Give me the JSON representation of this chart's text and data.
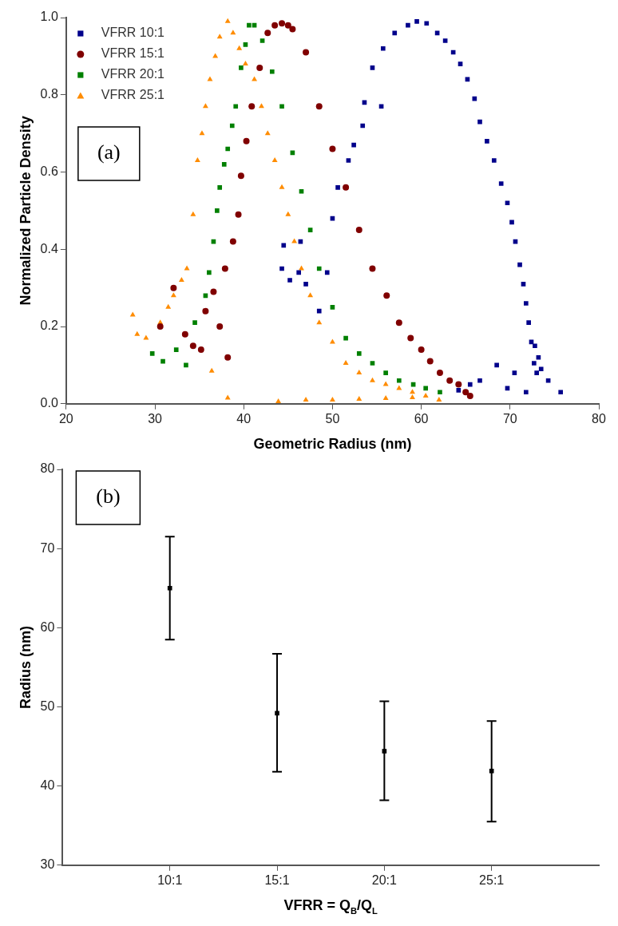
{
  "chart_data": [
    {
      "type": "scatter",
      "xlabel": "Geometric Radius (nm)",
      "ylabel": "Normalized Particle Density",
      "annotations": [
        "(a)"
      ],
      "xlim": [
        20,
        80
      ],
      "xticks": [
        20,
        30,
        40,
        50,
        60,
        70,
        80
      ],
      "ylim": [
        0,
        1
      ],
      "yticks": [
        {
          "value": 0,
          "label": "0.0"
        },
        0.2,
        0.4,
        0.6,
        0.8,
        {
          "value": 1,
          "label": "1.0"
        }
      ],
      "grid": false,
      "legend": "top left",
      "series": [
        {
          "name": "VFRR 10:1",
          "color": "#00008b",
          "marker": "square",
          "x": [
            44.5,
            44.3,
            45.2,
            46.2,
            46.4,
            47.0,
            48.5,
            49.4,
            50.0,
            50.6,
            51.8,
            52.4,
            53.4,
            53.6,
            55.5,
            54.5,
            55.7,
            57.0,
            58.5,
            59.5,
            60.6,
            61.8,
            62.7,
            63.6,
            64.4,
            65.2,
            66.0,
            66.6,
            67.4,
            68.2,
            69.0,
            69.7,
            70.2,
            70.6,
            71.1,
            71.5,
            71.8,
            72.1,
            72.4,
            72.7,
            73.0,
            73.5,
            74.3,
            75.7,
            69.7,
            66.6,
            64.2,
            71.8,
            70.5,
            72.8,
            73.2,
            68.5,
            65.5
          ],
          "values": [
            0.41,
            0.35,
            0.32,
            0.34,
            0.42,
            0.31,
            0.24,
            0.34,
            0.48,
            0.56,
            0.63,
            0.67,
            0.72,
            0.78,
            0.77,
            0.87,
            0.92,
            0.96,
            0.98,
            0.99,
            0.985,
            0.96,
            0.94,
            0.91,
            0.88,
            0.84,
            0.79,
            0.73,
            0.68,
            0.63,
            0.57,
            0.52,
            0.47,
            0.42,
            0.36,
            0.31,
            0.26,
            0.21,
            0.16,
            0.105,
            0.08,
            0.09,
            0.06,
            0.03,
            0.04,
            0.06,
            0.035,
            0.03,
            0.08,
            0.15,
            0.12,
            0.1,
            0.05
          ]
        },
        {
          "name": "VFRR 15:1",
          "color": "#800000",
          "marker": "circle",
          "x": [
            30.6,
            32.1,
            33.4,
            34.3,
            35.2,
            35.7,
            36.6,
            37.3,
            38.2,
            37.9,
            38.8,
            39.4,
            39.7,
            40.3,
            40.9,
            41.8,
            42.7,
            43.5,
            44.3,
            45.0,
            45.5,
            47.0,
            48.5,
            50.0,
            51.5,
            53.0,
            54.5,
            56.1,
            57.5,
            58.8,
            60.0,
            61.0,
            62.1,
            63.2,
            64.2,
            65.0,
            65.5
          ],
          "values": [
            0.2,
            0.3,
            0.18,
            0.15,
            0.14,
            0.24,
            0.29,
            0.2,
            0.12,
            0.35,
            0.42,
            0.49,
            0.59,
            0.68,
            0.77,
            0.87,
            0.96,
            0.98,
            0.985,
            0.98,
            0.97,
            0.91,
            0.77,
            0.66,
            0.56,
            0.45,
            0.35,
            0.28,
            0.21,
            0.17,
            0.14,
            0.11,
            0.08,
            0.06,
            0.05,
            0.03,
            0.02
          ]
        },
        {
          "name": "VFRR 20:1",
          "color": "#008000",
          "marker": "square",
          "x": [
            29.7,
            30.9,
            32.4,
            33.5,
            34.5,
            35.7,
            36.1,
            36.6,
            37.0,
            37.3,
            37.8,
            38.2,
            38.7,
            39.1,
            39.7,
            40.2,
            40.6,
            41.2,
            42.1,
            43.2,
            44.3,
            45.5,
            46.5,
            47.5,
            48.5,
            50.0,
            51.5,
            53.0,
            54.5,
            56.0,
            57.5,
            59.1,
            60.5,
            62.1
          ],
          "values": [
            0.13,
            0.11,
            0.14,
            0.1,
            0.21,
            0.28,
            0.34,
            0.42,
            0.5,
            0.56,
            0.62,
            0.66,
            0.72,
            0.77,
            0.87,
            0.93,
            0.98,
            0.98,
            0.94,
            0.86,
            0.77,
            0.65,
            0.55,
            0.45,
            0.35,
            0.25,
            0.17,
            0.13,
            0.105,
            0.08,
            0.06,
            0.05,
            0.04,
            0.03
          ]
        },
        {
          "name": "VFRR 25:1",
          "color": "#ff8c00",
          "marker": "triangle",
          "x": [
            27.5,
            28.0,
            29.0,
            30.6,
            31.5,
            32.1,
            33.0,
            33.6,
            34.3,
            34.8,
            35.3,
            35.7,
            36.2,
            36.4,
            36.8,
            37.3,
            38.2,
            38.8,
            39.5,
            40.2,
            41.2,
            42.0,
            42.7,
            43.5,
            44.3,
            45.0,
            45.7,
            46.5,
            47.5,
            48.5,
            50.0,
            51.5,
            53.0,
            54.5,
            56.0,
            57.5,
            59.0,
            60.5,
            62.0,
            38.2,
            43.9,
            47.0,
            50.0,
            53.0,
            56.0,
            59.0
          ],
          "values": [
            0.23,
            0.18,
            0.17,
            0.21,
            0.25,
            0.28,
            0.32,
            0.35,
            0.49,
            0.63,
            0.7,
            0.77,
            0.84,
            0.085,
            0.9,
            0.95,
            0.99,
            0.96,
            0.92,
            0.88,
            0.84,
            0.77,
            0.7,
            0.63,
            0.56,
            0.49,
            0.42,
            0.35,
            0.28,
            0.21,
            0.16,
            0.105,
            0.08,
            0.06,
            0.05,
            0.04,
            0.03,
            0.02,
            0.01,
            0.015,
            0.006,
            0.01,
            0.01,
            0.012,
            0.014,
            0.016
          ]
        }
      ]
    },
    {
      "type": "scatter",
      "xlabel": "VFRR = Q$_{B}$/Q$_{L}$",
      "ylabel": "Radius (nm)",
      "annotations": [
        "(b)"
      ],
      "categories": [
        "10:1",
        "15:1",
        "20:1",
        "25:1"
      ],
      "values": [
        65,
        49.2,
        44.4,
        41.9
      ],
      "errors": [
        [
          58.5,
          71.5
        ],
        [
          41.8,
          56.7
        ],
        [
          38.2,
          50.7
        ],
        [
          35.5,
          48.2
        ]
      ],
      "color": "#000000",
      "marker": "square",
      "ylim": [
        30,
        80
      ],
      "yticks": [
        30,
        40,
        50,
        60,
        70,
        80
      ],
      "grid": false
    }
  ]
}
